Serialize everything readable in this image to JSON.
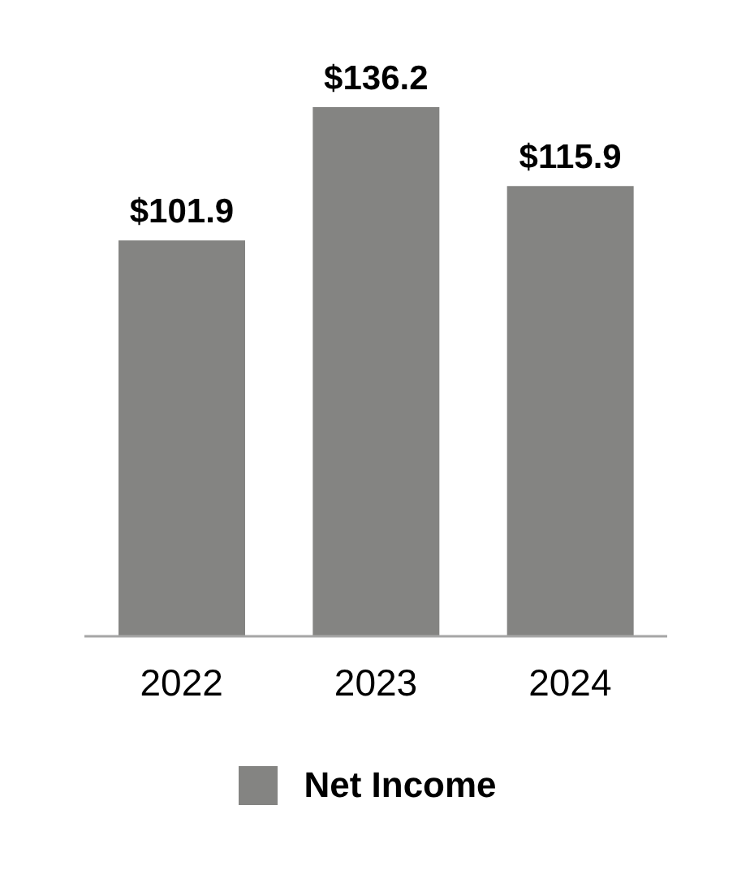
{
  "chart_data": {
    "type": "bar",
    "categories": [
      "2022",
      "2023",
      "2024"
    ],
    "series": [
      {
        "name": "Net Income",
        "color": "#848482",
        "values": [
          101.9,
          136.2,
          115.9
        ],
        "value_labels": [
          "$101.9",
          "$136.2",
          "$115.9"
        ]
      }
    ],
    "legend": "bottom"
  }
}
